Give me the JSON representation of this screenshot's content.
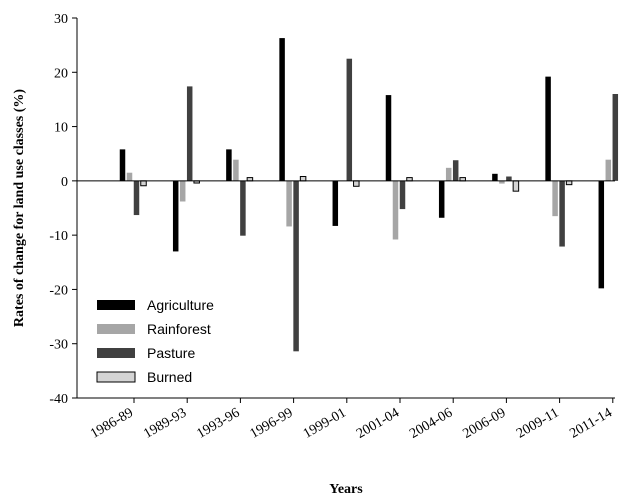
{
  "chart_data": {
    "type": "bar",
    "title": "",
    "xlabel": "Years",
    "ylabel": "Rates of change for land use classes (%)",
    "ylim": [
      -40,
      30
    ],
    "yticks": [
      -40,
      -30,
      -20,
      -10,
      0,
      10,
      20,
      30
    ],
    "grid": false,
    "legend": "bottom-left",
    "categories": [
      "1986-89",
      "1989-93",
      "1993-96",
      "1996-99",
      "1999-01",
      "2001-04",
      "2004-06",
      "2006-09",
      "2009-11",
      "2011-14"
    ],
    "series": [
      {
        "name": "Agriculture",
        "color": "#000000",
        "values": [
          5.8,
          -13.0,
          5.8,
          26.3,
          -8.3,
          15.8,
          -6.8,
          1.3,
          19.2,
          -19.8
        ]
      },
      {
        "name": "Rainforest",
        "color": "#a6a6a6",
        "values": [
          1.5,
          -3.8,
          3.9,
          -8.4,
          0,
          -10.8,
          2.4,
          -0.5,
          -6.5,
          3.9
        ]
      },
      {
        "name": "Pasture",
        "color": "#404040",
        "values": [
          -6.3,
          17.4,
          -10.1,
          -31.4,
          22.5,
          -5.2,
          3.8,
          0.8,
          -12.1,
          16.0
        ]
      },
      {
        "name": "Burned",
        "color": "#d4d4d4",
        "outline": "#000000",
        "values": [
          -0.9,
          -0.4,
          0.6,
          0.8,
          -1.0,
          0.6,
          0.6,
          -1.9,
          -0.7,
          0.2
        ]
      }
    ]
  }
}
